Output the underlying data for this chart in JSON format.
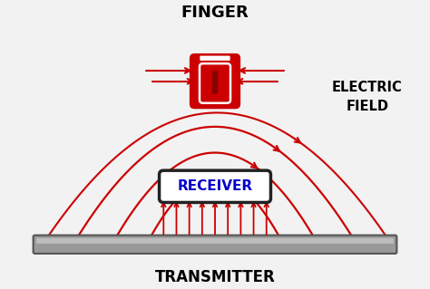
{
  "bg_color": "#f2f2f2",
  "title_finger": "FINGER",
  "title_transmitter": "TRANSMITTER",
  "title_ef": "ELECTRIC\nFIELD",
  "title_receiver": "RECEIVER",
  "arrow_color": "#cc0000",
  "receiver_text_color": "#0000cc",
  "receiver_bg": "#ffffff",
  "receiver_border": "#222222",
  "finger_color": "#cc0000",
  "plate_color": "#999999",
  "plate_edge": "#555555",
  "xlim": [
    0,
    10
  ],
  "ylim": [
    0,
    7.2
  ],
  "figw": 4.74,
  "figh": 3.19
}
